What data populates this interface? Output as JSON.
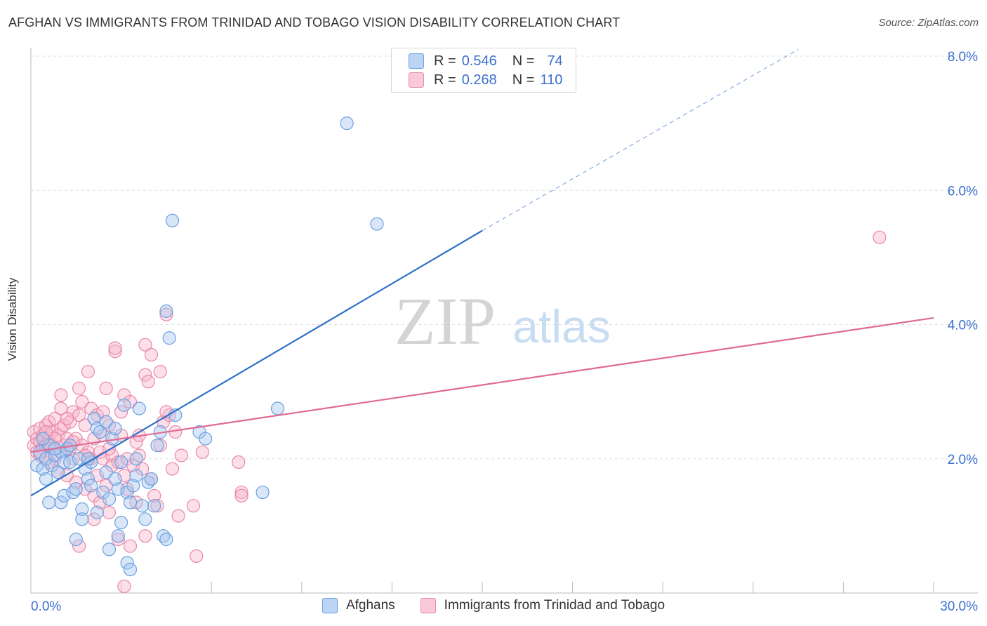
{
  "title": "AFGHAN VS IMMIGRANTS FROM TRINIDAD AND TOBAGO VISION DISABILITY CORRELATION CHART",
  "source": "Source: ZipAtlas.com",
  "watermark": {
    "zip": "ZIP",
    "atlas": "atlas"
  },
  "legend_top": {
    "rows": [
      {
        "r_label": "R =",
        "r_value": "0.546",
        "n_label": "N =",
        "n_value": "74"
      },
      {
        "r_label": "R =",
        "r_value": "0.268",
        "n_label": "N =",
        "n_value": "110"
      }
    ]
  },
  "legend_bottom": {
    "items": [
      {
        "label": "Afghans"
      },
      {
        "label": "Immigrants from Trinidad and Tobago"
      }
    ]
  },
  "colors": {
    "blue_fill": "#a8c8f0",
    "blue_stroke": "#6a9fe0",
    "blue_line": "#2f72c8",
    "pink_fill": "#f8b8cc",
    "pink_stroke": "#e889a8",
    "pink_line": "#e06a95",
    "tick_text": "#3b6fd0",
    "grid": "#dddddd"
  },
  "chart_data": {
    "type": "scatter",
    "title": "AFGHAN VS IMMIGRANTS FROM TRINIDAD AND TOBAGO VISION DISABILITY CORRELATION CHART",
    "xlabel": "",
    "ylabel": "Vision Disability",
    "xlim": [
      0,
      30
    ],
    "ylim": [
      0,
      8
    ],
    "x_tick_labels": [
      "0.0%",
      "30.0%"
    ],
    "y_ticks": [
      2,
      4,
      6,
      8
    ],
    "y_tick_labels": [
      "2.0%",
      "4.0%",
      "6.0%",
      "8.0%"
    ],
    "grid": true,
    "legend_placement": "top-center",
    "series": [
      {
        "name": "Afghans",
        "color": "#a8c8f0",
        "trend": {
          "x": [
            0,
            15
          ],
          "y": [
            1.45,
            5.4
          ],
          "dashed_extension_to": [
            25.5,
            8.1
          ]
        },
        "points": [
          [
            0.2,
            1.9
          ],
          [
            0.3,
            2.1
          ],
          [
            0.4,
            1.85
          ],
          [
            0.5,
            2.0
          ],
          [
            0.5,
            1.7
          ],
          [
            0.6,
            2.2
          ],
          [
            0.7,
            1.9
          ],
          [
            0.8,
            2.05
          ],
          [
            0.9,
            1.8
          ],
          [
            1.0,
            2.1
          ],
          [
            1.1,
            1.95
          ],
          [
            1.2,
            2.15
          ],
          [
            1.0,
            1.35
          ],
          [
            1.1,
            1.45
          ],
          [
            1.3,
            1.95
          ],
          [
            1.4,
            1.5
          ],
          [
            1.5,
            1.55
          ],
          [
            1.6,
            2.0
          ],
          [
            1.7,
            1.25
          ],
          [
            1.7,
            1.1
          ],
          [
            1.8,
            1.85
          ],
          [
            1.9,
            1.7
          ],
          [
            2.0,
            1.95
          ],
          [
            2.0,
            1.6
          ],
          [
            2.1,
            2.6
          ],
          [
            2.2,
            2.45
          ],
          [
            2.3,
            2.4
          ],
          [
            2.4,
            1.5
          ],
          [
            2.5,
            2.55
          ],
          [
            2.5,
            1.8
          ],
          [
            2.6,
            1.4
          ],
          [
            2.7,
            2.3
          ],
          [
            2.8,
            2.45
          ],
          [
            2.9,
            1.55
          ],
          [
            3.0,
            1.95
          ],
          [
            3.0,
            1.05
          ],
          [
            3.1,
            2.8
          ],
          [
            3.2,
            1.5
          ],
          [
            3.3,
            1.35
          ],
          [
            3.4,
            1.6
          ],
          [
            3.5,
            1.75
          ],
          [
            3.6,
            2.75
          ],
          [
            3.7,
            1.3
          ],
          [
            3.8,
            1.1
          ],
          [
            3.9,
            1.65
          ],
          [
            4.0,
            1.7
          ],
          [
            4.1,
            1.3
          ],
          [
            4.2,
            2.2
          ],
          [
            4.3,
            2.4
          ],
          [
            4.4,
            0.85
          ],
          [
            4.5,
            0.8
          ],
          [
            4.6,
            3.8
          ],
          [
            4.7,
            5.55
          ],
          [
            4.8,
            2.65
          ],
          [
            5.6,
            2.4
          ],
          [
            5.8,
            2.3
          ],
          [
            7.7,
            1.5
          ],
          [
            8.2,
            2.75
          ],
          [
            10.5,
            7.0
          ],
          [
            11.5,
            5.5
          ],
          [
            3.2,
            0.45
          ],
          [
            3.3,
            0.35
          ],
          [
            2.6,
            0.65
          ],
          [
            4.5,
            4.2
          ],
          [
            0.8,
            2.15
          ],
          [
            1.3,
            2.2
          ],
          [
            1.9,
            2.0
          ],
          [
            0.6,
            1.35
          ],
          [
            2.2,
            1.2
          ],
          [
            3.5,
            2.0
          ],
          [
            2.9,
            0.85
          ],
          [
            1.5,
            0.8
          ],
          [
            0.4,
            2.3
          ],
          [
            2.8,
            1.7
          ]
        ]
      },
      {
        "name": "Immigrants from Trinidad and Tobago",
        "color": "#f8b8cc",
        "trend": {
          "x": [
            0,
            30
          ],
          "y": [
            2.1,
            4.1
          ]
        },
        "points": [
          [
            0.1,
            2.2
          ],
          [
            0.1,
            2.4
          ],
          [
            0.2,
            2.3
          ],
          [
            0.2,
            2.1
          ],
          [
            0.3,
            2.25
          ],
          [
            0.3,
            2.45
          ],
          [
            0.4,
            2.35
          ],
          [
            0.4,
            2.15
          ],
          [
            0.5,
            2.5
          ],
          [
            0.5,
            2.2
          ],
          [
            0.6,
            2.3
          ],
          [
            0.6,
            2.55
          ],
          [
            0.7,
            2.4
          ],
          [
            0.7,
            2.2
          ],
          [
            0.8,
            2.6
          ],
          [
            0.8,
            2.0
          ],
          [
            0.9,
            2.35
          ],
          [
            0.9,
            1.8
          ],
          [
            1.0,
            2.45
          ],
          [
            1.0,
            2.75
          ],
          [
            1.1,
            2.5
          ],
          [
            1.1,
            2.2
          ],
          [
            1.2,
            2.3
          ],
          [
            1.2,
            1.75
          ],
          [
            1.3,
            2.15
          ],
          [
            1.3,
            2.55
          ],
          [
            1.4,
            2.7
          ],
          [
            1.4,
            2.0
          ],
          [
            1.5,
            2.3
          ],
          [
            1.5,
            1.65
          ],
          [
            1.6,
            2.65
          ],
          [
            1.6,
            3.05
          ],
          [
            1.7,
            2.85
          ],
          [
            1.7,
            2.2
          ],
          [
            1.8,
            2.5
          ],
          [
            1.8,
            1.55
          ],
          [
            1.9,
            2.1
          ],
          [
            1.9,
            3.3
          ],
          [
            2.0,
            2.75
          ],
          [
            2.0,
            2.0
          ],
          [
            2.1,
            2.3
          ],
          [
            2.1,
            1.45
          ],
          [
            2.2,
            1.75
          ],
          [
            2.2,
            2.65
          ],
          [
            2.3,
            2.1
          ],
          [
            2.3,
            1.35
          ],
          [
            2.4,
            2.7
          ],
          [
            2.4,
            2.0
          ],
          [
            2.5,
            3.05
          ],
          [
            2.5,
            1.6
          ],
          [
            2.6,
            2.5
          ],
          [
            2.6,
            1.2
          ],
          [
            2.7,
            2.05
          ],
          [
            2.7,
            1.9
          ],
          [
            2.8,
            3.6
          ],
          [
            2.8,
            3.65
          ],
          [
            2.9,
            1.95
          ],
          [
            3.0,
            2.7
          ],
          [
            3.0,
            2.35
          ],
          [
            3.1,
            2.95
          ],
          [
            3.1,
            1.75
          ],
          [
            3.2,
            2.0
          ],
          [
            3.2,
            1.55
          ],
          [
            3.3,
            2.85
          ],
          [
            3.4,
            1.9
          ],
          [
            3.5,
            1.35
          ],
          [
            3.5,
            2.25
          ],
          [
            3.6,
            2.35
          ],
          [
            3.7,
            1.85
          ],
          [
            3.8,
            3.25
          ],
          [
            3.8,
            3.7
          ],
          [
            3.9,
            3.15
          ],
          [
            4.0,
            3.55
          ],
          [
            4.0,
            1.7
          ],
          [
            4.1,
            1.45
          ],
          [
            4.2,
            1.3
          ],
          [
            4.3,
            3.3
          ],
          [
            4.3,
            2.2
          ],
          [
            4.4,
            2.55
          ],
          [
            4.5,
            4.15
          ],
          [
            4.6,
            2.65
          ],
          [
            4.7,
            1.85
          ],
          [
            4.8,
            2.4
          ],
          [
            4.9,
            1.15
          ],
          [
            5.0,
            2.05
          ],
          [
            5.4,
            1.3
          ],
          [
            5.5,
            0.55
          ],
          [
            5.7,
            2.1
          ],
          [
            6.9,
            1.95
          ],
          [
            7.0,
            1.5
          ],
          [
            7.0,
            1.45
          ],
          [
            0.3,
            2.05
          ],
          [
            0.6,
            1.95
          ],
          [
            1.0,
            2.95
          ],
          [
            1.4,
            2.25
          ],
          [
            1.6,
            0.7
          ],
          [
            2.1,
            1.1
          ],
          [
            2.9,
            0.8
          ],
          [
            3.3,
            0.7
          ],
          [
            3.8,
            0.85
          ],
          [
            3.1,
            0.1
          ],
          [
            4.5,
            2.7
          ],
          [
            2.4,
            2.35
          ],
          [
            1.8,
            2.05
          ],
          [
            2.6,
            2.15
          ],
          [
            1.2,
            2.6
          ],
          [
            0.8,
            2.3
          ],
          [
            0.5,
            2.4
          ],
          [
            3.6,
            2.05
          ],
          [
            28.2,
            5.3
          ]
        ]
      }
    ]
  }
}
